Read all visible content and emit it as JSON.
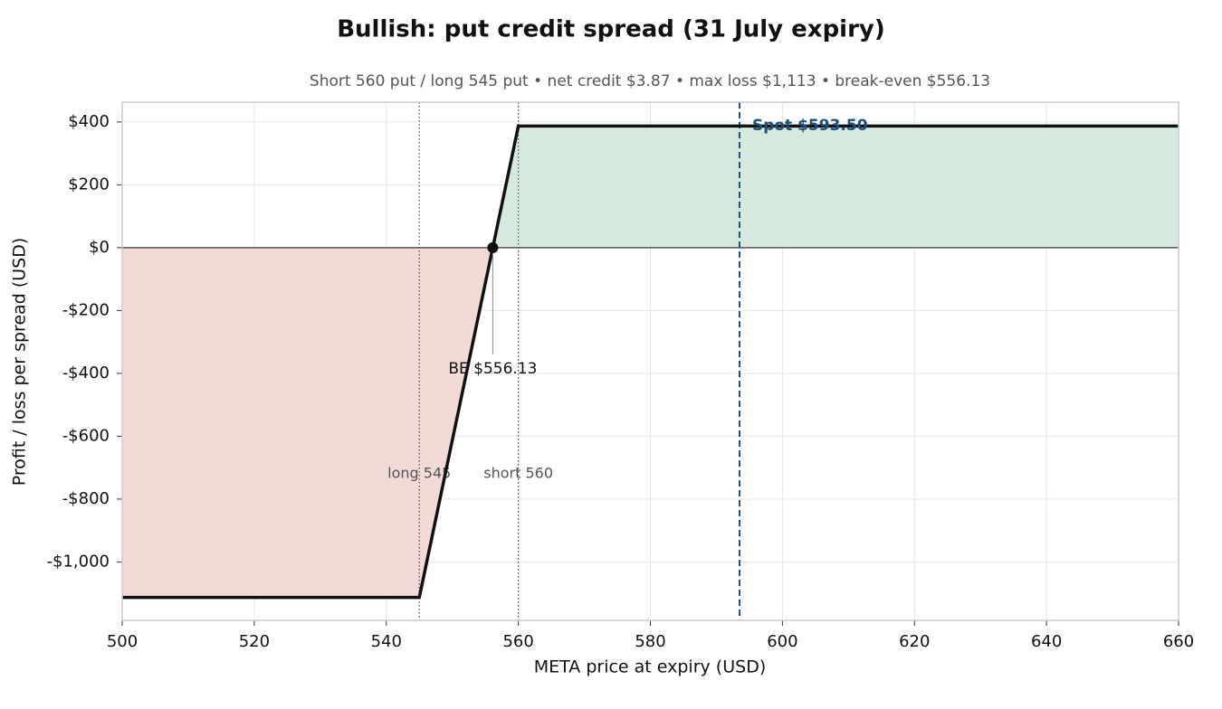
{
  "chart_data": {
    "type": "line",
    "title": "Bullish: put credit spread (31 July expiry)",
    "subtitle": "Short 560 put / long 545 put  •  net credit $3.87  •  max loss $1,113  •  break-even $556.13",
    "xlabel": "META price at expiry (USD)",
    "ylabel": "Profit / loss per spread (USD)",
    "x": [
      500,
      545,
      556.13,
      560,
      660
    ],
    "values": [
      -1113,
      -1113,
      0,
      387,
      387
    ],
    "color": "#111111",
    "profit_color": "#d5e9df",
    "loss_color": "#f2dad7",
    "xlim": [
      500,
      660
    ],
    "ylim": [
      -1186,
      463
    ],
    "xticks": [
      500,
      520,
      540,
      560,
      580,
      600,
      620,
      640,
      660
    ],
    "yticks": [
      {
        "value": -1000,
        "label": "-$1,000"
      },
      {
        "value": -800,
        "label": "-$800"
      },
      {
        "value": -600,
        "label": "-$600"
      },
      {
        "value": -400,
        "label": "-$400"
      },
      {
        "value": -200,
        "label": "-$200"
      },
      {
        "value": 0,
        "label": "$0"
      },
      {
        "value": 200,
        "label": "$200"
      },
      {
        "value": 400,
        "label": "$400"
      }
    ],
    "grid": true,
    "strike_lines": [
      {
        "x": 545,
        "label": "long 545"
      },
      {
        "x": 560,
        "label": "short 560"
      }
    ],
    "spot": {
      "x": 593.5,
      "label": "Spot $593.50",
      "color": "#1f4e79"
    },
    "breakeven": {
      "x": 556.13,
      "y": 0,
      "label": "BE $556.13"
    }
  }
}
